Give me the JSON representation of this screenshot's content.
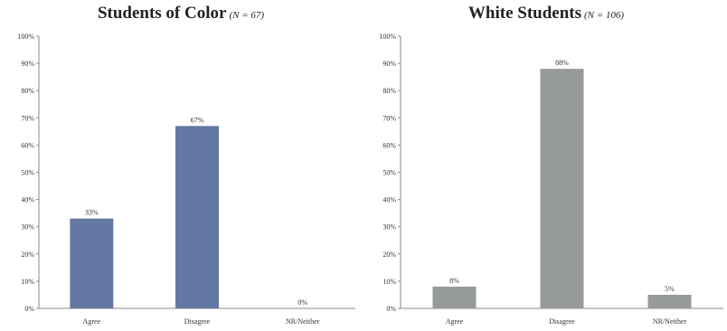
{
  "chart_data": [
    {
      "type": "bar",
      "title": "Students of Color",
      "subtitle": "(N = 67)",
      "categories": [
        "Agree",
        "Disagree",
        "NR/Neither"
      ],
      "values": [
        33,
        67,
        0
      ],
      "data_labels": [
        "33%",
        "67%",
        "0%"
      ],
      "ylim": [
        0,
        100
      ],
      "yticks": [
        "0%",
        "10%",
        "20%",
        "30%",
        "40%",
        "50%",
        "60%",
        "70%",
        "80%",
        "90%",
        "100%"
      ],
      "bar_color": "#6379a3",
      "grid": false,
      "legend": "none"
    },
    {
      "type": "bar",
      "title": "White Students",
      "subtitle": "(N = 106)",
      "categories": [
        "Agree",
        "Disagree",
        "NR/Neither"
      ],
      "values": [
        8,
        88,
        5
      ],
      "data_labels": [
        "8%",
        "88%",
        "5%"
      ],
      "ylim": [
        0,
        100
      ],
      "yticks": [
        "0%",
        "10%",
        "20%",
        "30%",
        "40%",
        "50%",
        "60%",
        "70%",
        "80%",
        "90%",
        "100%"
      ],
      "bar_color": "#979b97",
      "grid": false,
      "legend": "none"
    }
  ]
}
